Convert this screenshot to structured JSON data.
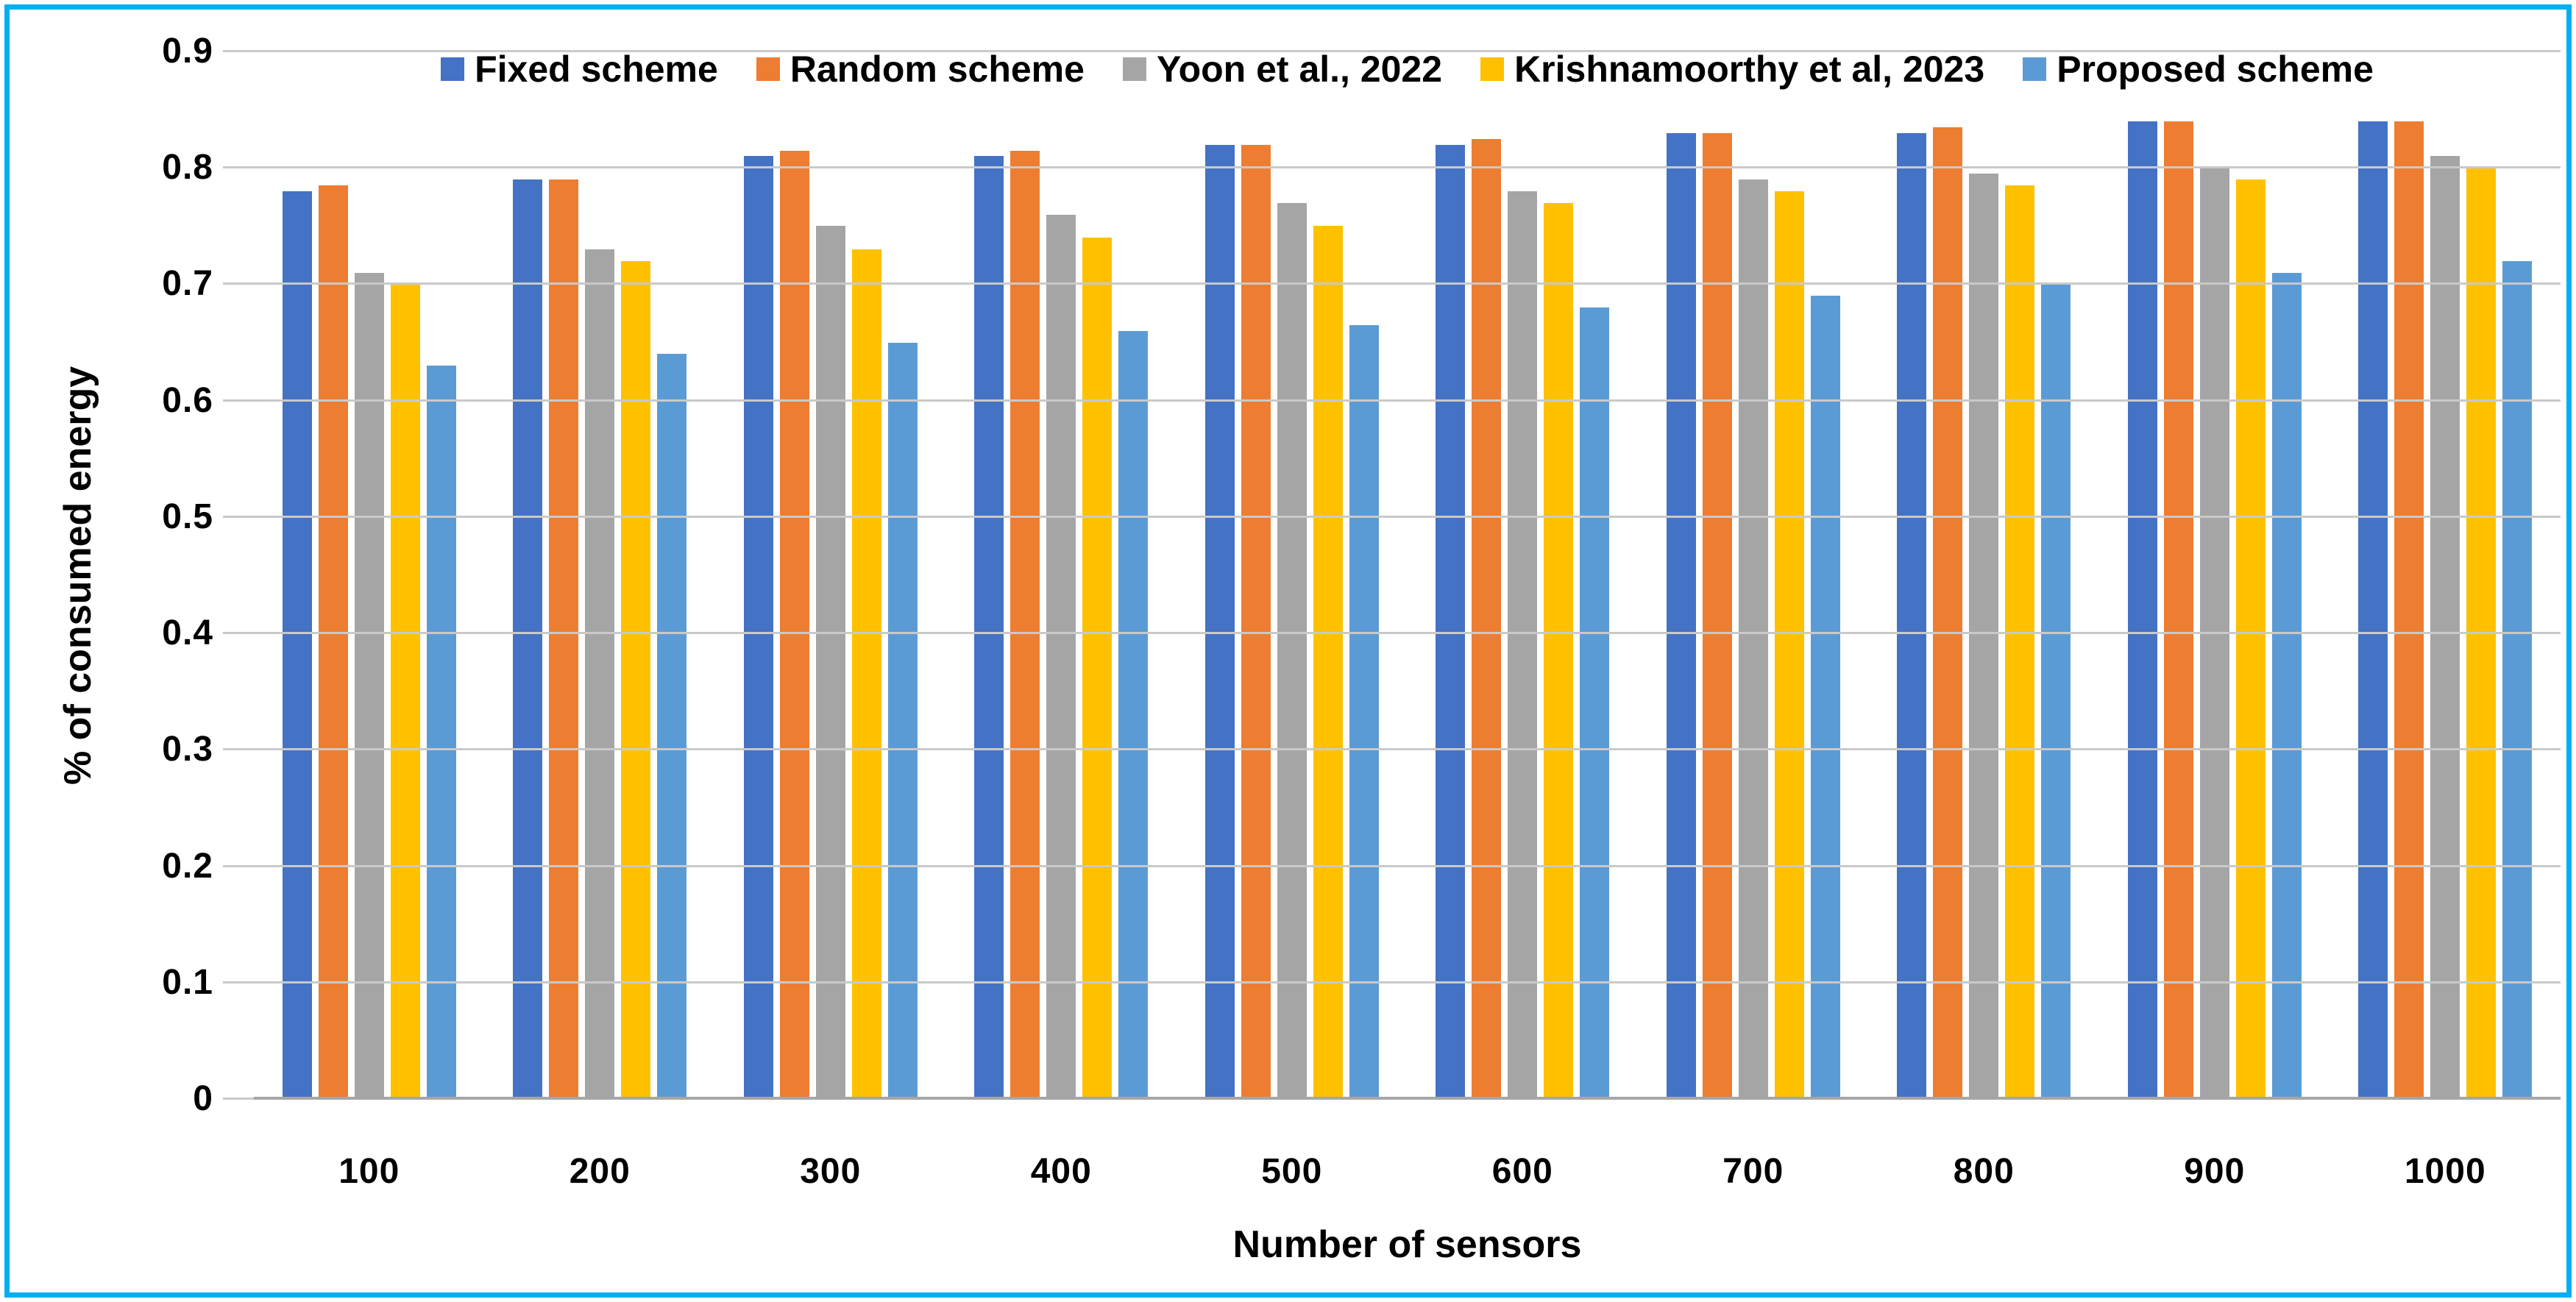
{
  "chart_data": {
    "type": "bar",
    "title": "",
    "xlabel": "Number of sensors",
    "ylabel": "% of consumed energy",
    "ylim": [
      0,
      0.9
    ],
    "yticks": [
      0.9,
      0.8,
      0.7,
      0.6,
      0.5,
      0.4,
      0.3,
      0.2,
      0.1,
      0
    ],
    "ytick_labels": [
      "0.9",
      "0.8",
      "0.7",
      "0.6",
      "0.5",
      "0.4",
      "0.3",
      "0.2",
      "0.1",
      "0"
    ],
    "categories": [
      "100",
      "200",
      "300",
      "400",
      "500",
      "600",
      "700",
      "800",
      "900",
      "1000"
    ],
    "series": [
      {
        "name": "Fixed scheme",
        "color": "#4472C4",
        "values": [
          0.78,
          0.79,
          0.81,
          0.81,
          0.82,
          0.82,
          0.83,
          0.83,
          0.84,
          0.84
        ]
      },
      {
        "name": "Random scheme",
        "color": "#ED7D31",
        "values": [
          0.785,
          0.79,
          0.815,
          0.815,
          0.82,
          0.825,
          0.83,
          0.835,
          0.84,
          0.84
        ]
      },
      {
        "name": "Yoon et al., 2022",
        "color": "#A5A5A5",
        "values": [
          0.71,
          0.73,
          0.75,
          0.76,
          0.77,
          0.78,
          0.79,
          0.795,
          0.8,
          0.81
        ]
      },
      {
        "name": "Krishnamoorthy et al, 2023",
        "color": "#FFC000",
        "values": [
          0.7,
          0.72,
          0.73,
          0.74,
          0.75,
          0.77,
          0.78,
          0.785,
          0.79,
          0.8
        ]
      },
      {
        "name": "Proposed scheme",
        "color": "#5B9BD5",
        "values": [
          0.63,
          0.64,
          0.65,
          0.66,
          0.665,
          0.68,
          0.69,
          0.7,
          0.71,
          0.72
        ]
      }
    ],
    "legend_position": "top",
    "grid": true
  },
  "frame": {
    "border_color": "#00B0F0",
    "background": "#FFFFFF"
  },
  "axis": {
    "gridline_color": "#C9C9C9",
    "baseline_color": "#A6A6A6",
    "text_color": "#000000"
  }
}
